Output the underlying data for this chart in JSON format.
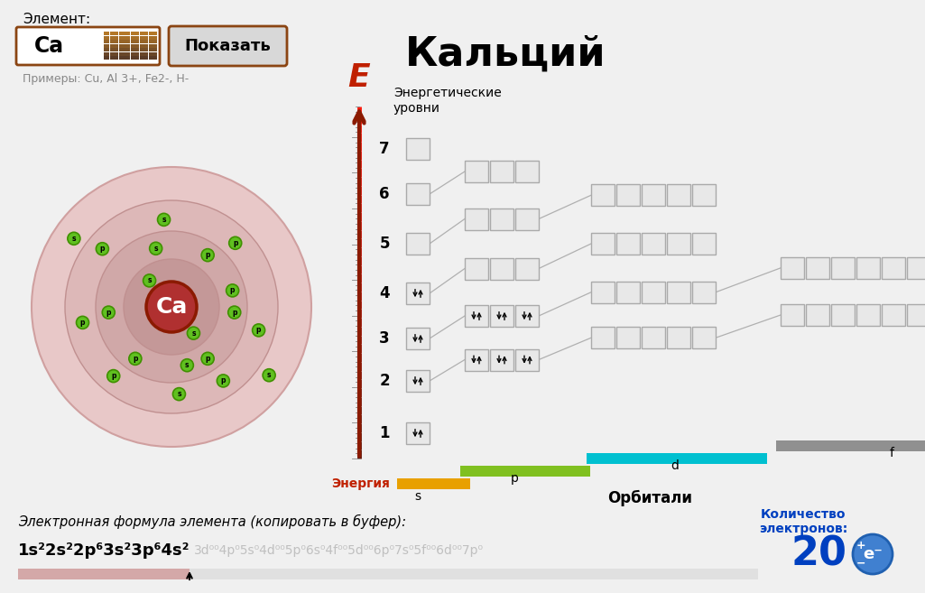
{
  "title": "Кальций",
  "element_symbol": "Ca",
  "element_label": "Элемент:",
  "button_text": "Показать",
  "examples_text": "Примеры: Cu, Al 3+, Fe2-, H-",
  "energy_label": "E",
  "energia_text": "Энергия",
  "orbital_label": "Орбитали",
  "energy_levels_label": "Энергетические\nуровни",
  "formula_label": "Электронная формула элемента (копировать в буфер):",
  "formula_main": "1s²2s²2p⁶3s²3p⁶4s²",
  "formula_faded": "3d⁰⁰4p⁰5s⁰4d⁰⁰5p⁰6s⁰4f⁰⁰5d⁰⁰6p⁰7s⁰5f⁰⁰6d⁰⁰7p⁰",
  "electron_count": "20",
  "electron_count_label": "Количество\nэлектронов:",
  "bg_color": "#f0f0f0",
  "s_bar_color": "#e8a000",
  "p_bar_color": "#80c020",
  "d_bar_color": "#00c0d0",
  "f_bar_color": "#909090",
  "box_bg": "#e8e8e8",
  "box_border": "#aaaaaa",
  "arrow_color": "#8b1a00",
  "line_color": "#b0b0b0"
}
